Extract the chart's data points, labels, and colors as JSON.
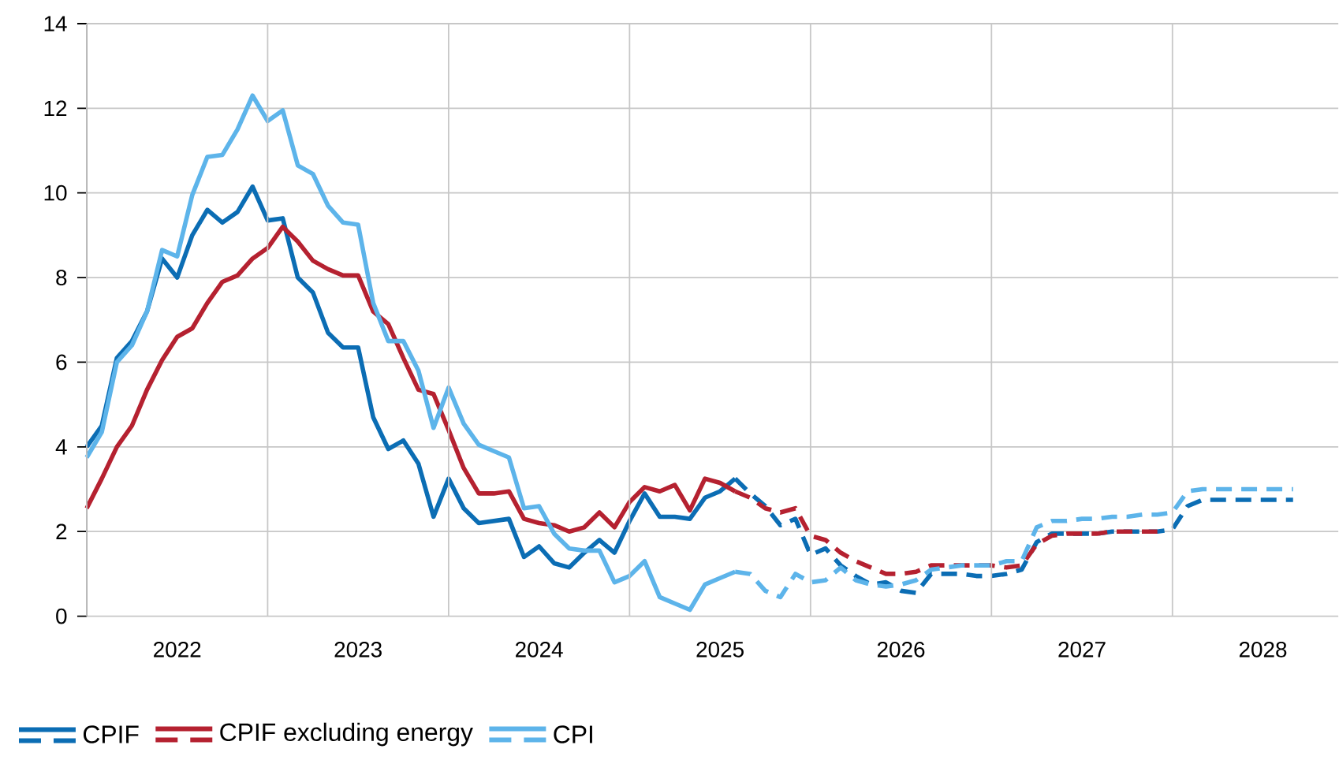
{
  "chart_data": {
    "type": "line",
    "xlim": [
      "2022-01",
      "2028-12"
    ],
    "ylim": [
      0,
      14
    ],
    "yticks": [
      0,
      2,
      4,
      6,
      8,
      10,
      12,
      14
    ],
    "xticks": [
      {
        "value": "2022-01",
        "label": null
      },
      {
        "value": "2022-07",
        "label": "2022"
      },
      {
        "value": "2023-01",
        "label": null
      },
      {
        "value": "2023-07",
        "label": "2023"
      },
      {
        "value": "2024-01",
        "label": null
      },
      {
        "value": "2024-07",
        "label": "2024"
      },
      {
        "value": "2025-01",
        "label": null
      },
      {
        "value": "2025-07",
        "label": "2025"
      },
      {
        "value": "2026-01",
        "label": null
      },
      {
        "value": "2026-07",
        "label": "2026"
      },
      {
        "value": "2027-01",
        "label": null
      },
      {
        "value": "2027-07",
        "label": "2027"
      },
      {
        "value": "2028-01",
        "label": null
      },
      {
        "value": "2028-07",
        "label": "2028"
      }
    ],
    "grid": true,
    "legend": "bottom",
    "x": [
      "2022-01",
      "2022-02",
      "2022-03",
      "2022-04",
      "2022-05",
      "2022-06",
      "2022-07",
      "2022-08",
      "2022-09",
      "2022-10",
      "2022-11",
      "2022-12",
      "2023-01",
      "2023-02",
      "2023-03",
      "2023-04",
      "2023-05",
      "2023-06",
      "2023-07",
      "2023-08",
      "2023-09",
      "2023-10",
      "2023-11",
      "2023-12",
      "2024-01",
      "2024-02",
      "2024-03",
      "2024-04",
      "2024-05",
      "2024-06",
      "2024-07",
      "2024-08",
      "2024-09",
      "2024-10",
      "2024-11",
      "2024-12",
      "2025-01",
      "2025-02",
      "2025-03",
      "2025-04",
      "2025-05",
      "2025-06",
      "2025-07",
      "2025-08",
      "2025-09",
      "2025-10",
      "2025-11",
      "2025-12",
      "2026-01",
      "2026-02",
      "2026-03",
      "2026-04",
      "2026-05",
      "2026-06",
      "2026-07",
      "2026-08",
      "2026-09",
      "2026-10",
      "2026-11",
      "2026-12",
      "2027-01",
      "2027-02",
      "2027-03",
      "2027-04",
      "2027-05",
      "2027-06",
      "2027-07",
      "2027-08",
      "2027-09",
      "2027-10",
      "2027-11",
      "2027-12",
      "2028-01",
      "2028-02",
      "2028-03",
      "2028-04",
      "2028-05",
      "2028-06",
      "2028-07",
      "2028-08",
      "2028-09"
    ],
    "series": [
      {
        "name": "CPIF",
        "color": "#0b6db4",
        "line_style": "solid",
        "values": [
          4.0,
          4.5,
          6.1,
          6.5,
          7.2,
          8.45,
          8.0,
          9.0,
          9.6,
          9.3,
          9.55,
          10.15,
          9.35,
          9.4,
          8.0,
          7.65,
          6.7,
          6.35,
          6.35,
          4.7,
          3.95,
          4.15,
          3.6,
          2.35,
          3.25,
          2.55,
          2.2,
          2.25,
          2.3,
          1.4,
          1.65,
          1.25,
          1.15,
          1.5,
          1.8,
          1.5,
          2.25,
          2.9,
          2.35,
          2.35,
          2.3,
          2.8,
          2.95,
          3.25,
          null,
          null,
          null,
          null,
          null,
          null,
          null,
          null,
          null,
          null,
          null,
          null,
          null,
          null,
          null,
          null,
          null,
          null,
          null,
          null,
          null,
          null,
          null,
          null,
          null,
          null,
          null,
          null,
          null,
          null,
          null,
          null,
          null,
          null,
          null,
          null,
          null
        ]
      },
      {
        "color": "#0b6db4",
        "line_style": "dashed",
        "values": [
          null,
          null,
          null,
          null,
          null,
          null,
          null,
          null,
          null,
          null,
          null,
          null,
          null,
          null,
          null,
          null,
          null,
          null,
          null,
          null,
          null,
          null,
          null,
          null,
          null,
          null,
          null,
          null,
          null,
          null,
          null,
          null,
          null,
          null,
          null,
          null,
          null,
          null,
          null,
          null,
          null,
          null,
          null,
          3.25,
          2.9,
          2.6,
          2.15,
          2.3,
          1.45,
          1.6,
          1.2,
          0.95,
          0.75,
          0.8,
          0.6,
          0.55,
          1.0,
          1.0,
          1.0,
          0.95,
          0.95,
          1.0,
          1.1,
          1.75,
          1.95,
          1.95,
          1.95,
          1.95,
          2.0,
          2.0,
          2.0,
          2.0,
          2.05,
          2.6,
          2.75,
          2.75,
          2.75,
          2.75,
          2.75,
          2.75,
          2.75
        ]
      },
      {
        "name": "CPIF excluding energy",
        "color": "#b52130",
        "line_style": "solid",
        "values": [
          2.55,
          3.25,
          4.0,
          4.5,
          5.35,
          6.05,
          6.6,
          6.8,
          7.4,
          7.9,
          8.05,
          8.45,
          8.7,
          9.2,
          8.85,
          8.4,
          8.2,
          8.05,
          8.05,
          7.2,
          6.9,
          6.1,
          5.35,
          5.25,
          4.4,
          3.5,
          2.9,
          2.9,
          2.95,
          2.3,
          2.2,
          2.15,
          2.0,
          2.1,
          2.45,
          2.1,
          2.7,
          3.05,
          2.95,
          3.1,
          2.5,
          3.25,
          3.15,
          2.95,
          null,
          null,
          null,
          null,
          null,
          null,
          null,
          null,
          null,
          null,
          null,
          null,
          null,
          null,
          null,
          null,
          null,
          null,
          null,
          null,
          null,
          null,
          null,
          null,
          null,
          null,
          null,
          null,
          null,
          null,
          null,
          null,
          null,
          null,
          null,
          null,
          null
        ]
      },
      {
        "color": "#b52130",
        "line_style": "dashed",
        "values": [
          null,
          null,
          null,
          null,
          null,
          null,
          null,
          null,
          null,
          null,
          null,
          null,
          null,
          null,
          null,
          null,
          null,
          null,
          null,
          null,
          null,
          null,
          null,
          null,
          null,
          null,
          null,
          null,
          null,
          null,
          null,
          null,
          null,
          null,
          null,
          null,
          null,
          null,
          null,
          null,
          null,
          null,
          null,
          2.95,
          2.8,
          2.55,
          2.45,
          2.55,
          1.9,
          1.8,
          1.5,
          1.3,
          1.15,
          1.0,
          1.0,
          1.05,
          1.2,
          1.2,
          1.2,
          1.2,
          1.2,
          1.15,
          1.2,
          1.7,
          1.9,
          1.95,
          1.95,
          1.95,
          2.0,
          2.0,
          2.0,
          2.0,
          null,
          null,
          null,
          null,
          null,
          null,
          null,
          null,
          null
        ]
      },
      {
        "name": "CPI",
        "color": "#5db4ea",
        "line_style": "solid",
        "values": [
          3.75,
          4.35,
          6.0,
          6.4,
          7.2,
          8.65,
          8.5,
          9.95,
          10.85,
          10.9,
          11.5,
          12.3,
          11.7,
          11.95,
          10.65,
          10.45,
          9.7,
          9.3,
          9.25,
          7.4,
          6.5,
          6.5,
          5.8,
          4.45,
          5.4,
          4.55,
          4.05,
          3.9,
          3.75,
          2.55,
          2.6,
          1.95,
          1.6,
          1.55,
          1.55,
          0.8,
          0.95,
          1.3,
          0.45,
          0.3,
          0.15,
          0.75,
          0.9,
          1.05,
          null,
          null,
          null,
          null,
          null,
          null,
          null,
          null,
          null,
          null,
          null,
          null,
          null,
          null,
          null,
          null,
          null,
          null,
          null,
          null,
          null,
          null,
          null,
          null,
          null,
          null,
          null,
          null,
          null,
          null,
          null,
          null,
          null,
          null,
          null,
          null,
          null
        ]
      },
      {
        "color": "#5db4ea",
        "line_style": "dashed",
        "values": [
          null,
          null,
          null,
          null,
          null,
          null,
          null,
          null,
          null,
          null,
          null,
          null,
          null,
          null,
          null,
          null,
          null,
          null,
          null,
          null,
          null,
          null,
          null,
          null,
          null,
          null,
          null,
          null,
          null,
          null,
          null,
          null,
          null,
          null,
          null,
          null,
          null,
          null,
          null,
          null,
          null,
          null,
          null,
          1.05,
          1.0,
          0.6,
          0.45,
          1.0,
          0.8,
          0.85,
          1.15,
          0.85,
          0.75,
          0.7,
          0.75,
          0.85,
          1.1,
          1.15,
          1.2,
          1.2,
          1.2,
          1.3,
          1.3,
          2.1,
          2.25,
          2.25,
          2.3,
          2.3,
          2.35,
          2.35,
          2.4,
          2.4,
          2.45,
          2.95,
          3.0,
          3.0,
          3.0,
          3.0,
          3.0,
          3.0,
          3.0
        ]
      }
    ]
  }
}
